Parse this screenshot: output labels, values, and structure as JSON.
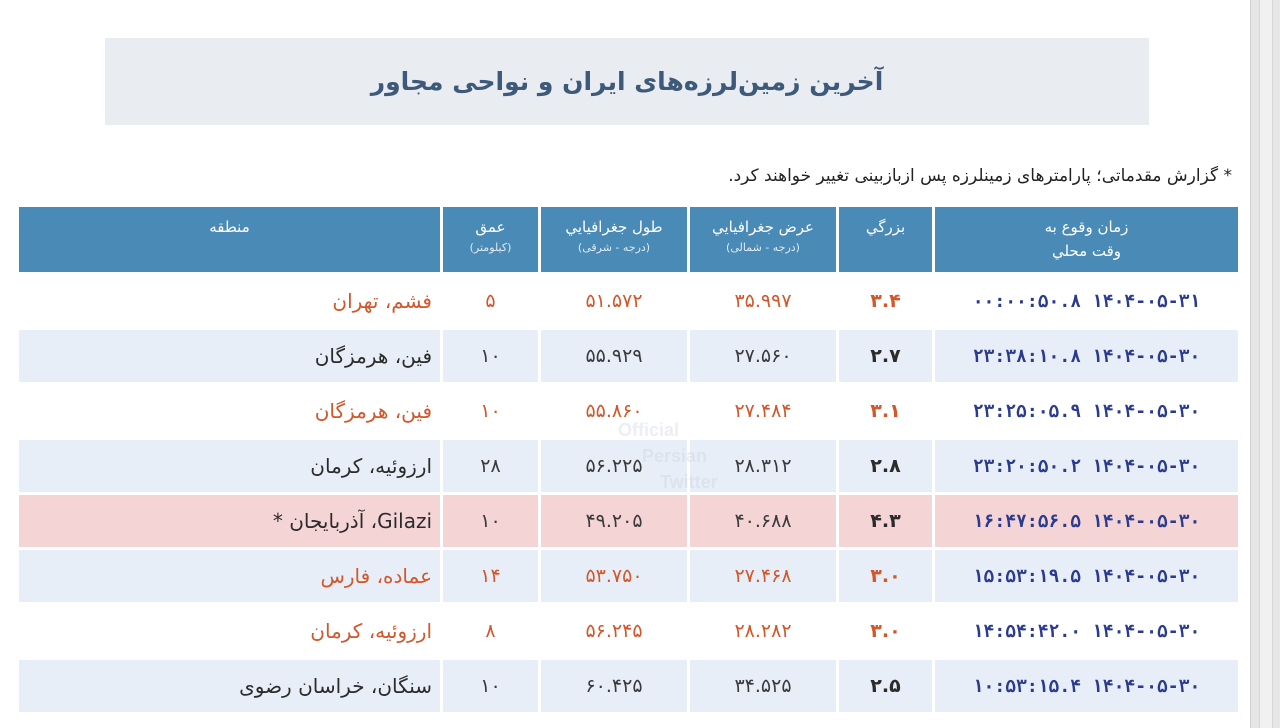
{
  "header": {
    "title": "آخرین زمین‌لرزه‌های ایران و نواحی مجاور"
  },
  "note": "* گزارش مقدماتی؛ پارامترهای زمینلرزه پس ازبازبینی تغییر خواهند کرد.",
  "columns": {
    "time": "زمان وقوع به",
    "time_sub": "وقت محلي",
    "mag": "بزرگي",
    "lat": "عرض جغرافيايي",
    "lat_sub": "(درجه - شمالی)",
    "lon": "طول جغرافيايي",
    "lon_sub": "(درجه - شرقی)",
    "depth": "عمق",
    "depth_sub": "(کیلومتر)",
    "region": "منطقه"
  },
  "rows": [
    {
      "time": "۱۴۰۴-۰۵-۳۱ ۰۰:۰۰:۵۰.۸",
      "mag": "۳.۴",
      "lat": "۳۵.۹۹۷",
      "lon": "۵۱.۵۷۲",
      "depth": "۵",
      "region": "فشم، تهران"
    },
    {
      "time": "۱۴۰۴-۰۵-۳۰ ۲۳:۳۸:۱۰.۸",
      "mag": "۲.۷",
      "lat": "۲۷.۵۶۰",
      "lon": "۵۵.۹۲۹",
      "depth": "۱۰",
      "region": "فین، هرمزگان"
    },
    {
      "time": "۱۴۰۴-۰۵-۳۰ ۲۳:۲۵:۰۵.۹",
      "mag": "۳.۱",
      "lat": "۲۷.۴۸۴",
      "lon": "۵۵.۸۶۰",
      "depth": "۱۰",
      "region": "فین، هرمزگان"
    },
    {
      "time": "۱۴۰۴-۰۵-۳۰ ۲۳:۲۰:۵۰.۲",
      "mag": "۲.۸",
      "lat": "۲۸.۳۱۲",
      "lon": "۵۶.۲۲۵",
      "depth": "۲۸",
      "region": "ارزوئیه، کرمان"
    },
    {
      "time": "۱۴۰۴-۰۵-۳۰ ۱۶:۴۷:۵۶.۵",
      "mag": "۴.۳",
      "lat": "۴۰.۶۸۸",
      "lon": "۴۹.۲۰۵",
      "depth": "۱۰",
      "region": "Gilazi، آذربایجان *"
    },
    {
      "time": "۱۴۰۴-۰۵-۳۰ ۱۵:۵۳:۱۹.۵",
      "mag": "۳.۰",
      "lat": "۲۷.۴۶۸",
      "lon": "۵۳.۷۵۰",
      "depth": "۱۴",
      "region": "عماده، فارس"
    },
    {
      "time": "۱۴۰۴-۰۵-۳۰ ۱۴:۵۴:۴۲.۰",
      "mag": "۳.۰",
      "lat": "۲۸.۲۸۲",
      "lon": "۵۶.۲۴۵",
      "depth": "۸",
      "region": "ارزوئیه، کرمان"
    },
    {
      "time": "۱۴۰۴-۰۵-۳۰ ۱۰:۵۳:۱۵.۴",
      "mag": "۲.۵",
      "lat": "۳۴.۵۲۵",
      "lon": "۶۰.۴۲۵",
      "depth": "۱۰",
      "region": "سنگان، خراسان رضوی"
    }
  ],
  "watermark": {
    "line1": "Official",
    "line2": "Persian",
    "line3": "Twitter"
  },
  "colors": {
    "header_bg": "#4a8ab6",
    "title_color": "#3d5a7a",
    "highlight": "#d2572a",
    "alert_row": "#f4d4d4",
    "alt_row": "#e8eef7",
    "time_color": "#2a3b8f"
  }
}
